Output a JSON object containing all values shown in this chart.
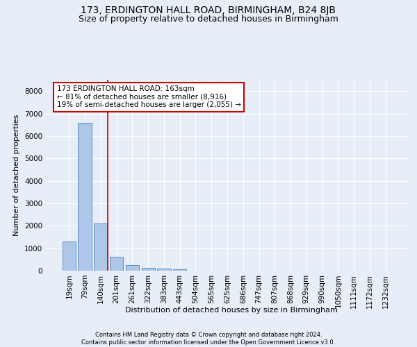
{
  "title": "173, ERDINGTON HALL ROAD, BIRMINGHAM, B24 8JB",
  "subtitle": "Size of property relative to detached houses in Birmingham",
  "xlabel": "Distribution of detached houses by size in Birmingham",
  "ylabel": "Number of detached properties",
  "footer_line1": "Contains HM Land Registry data © Crown copyright and database right 2024.",
  "footer_line2": "Contains public sector information licensed under the Open Government Licence v3.0.",
  "bar_labels": [
    "19sqm",
    "79sqm",
    "140sqm",
    "201sqm",
    "261sqm",
    "322sqm",
    "383sqm",
    "443sqm",
    "504sqm",
    "565sqm",
    "625sqm",
    "686sqm",
    "747sqm",
    "807sqm",
    "868sqm",
    "929sqm",
    "990sqm",
    "1050sqm",
    "1111sqm",
    "1172sqm",
    "1232sqm"
  ],
  "bar_values": [
    1310,
    6580,
    2090,
    620,
    250,
    130,
    90,
    60,
    0,
    0,
    0,
    0,
    0,
    0,
    0,
    0,
    0,
    0,
    0,
    0,
    0
  ],
  "bar_color": "#aec6e8",
  "bar_edge_color": "#5b8fc9",
  "vline_color": "#cc0000",
  "annotation_text": "173 ERDINGTON HALL ROAD: 163sqm\n← 81% of detached houses are smaller (8,916)\n19% of semi-detached houses are larger (2,055) →",
  "annotation_box_color": "#ffffff",
  "annotation_box_edge_color": "#cc0000",
  "ylim": [
    0,
    8500
  ],
  "yticks": [
    0,
    1000,
    2000,
    3000,
    4000,
    5000,
    6000,
    7000,
    8000
  ],
  "background_color": "#e8eef8",
  "grid_color": "#ffffff",
  "title_fontsize": 10,
  "subtitle_fontsize": 9,
  "axis_label_fontsize": 8,
  "tick_fontsize": 7.5,
  "footer_fontsize": 6
}
